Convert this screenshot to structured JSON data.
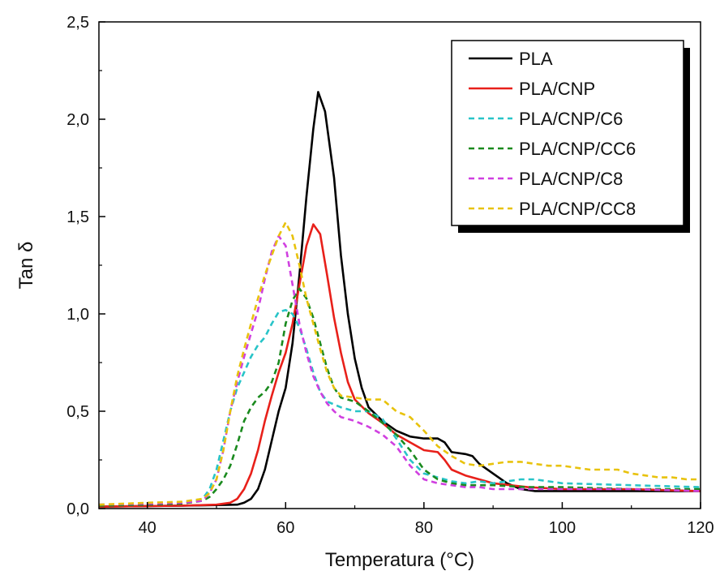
{
  "chart_data": {
    "type": "line",
    "xlabel": "Temperatura (°C)",
    "ylabel": "Tan δ",
    "xlim": [
      33,
      120
    ],
    "ylim": [
      0,
      2.5
    ],
    "xticks": [
      40,
      60,
      80,
      100,
      120
    ],
    "yticks": [
      0,
      0.5,
      1.0,
      1.5,
      2.0,
      2.5
    ],
    "xtick_labels": [
      "40",
      "60",
      "80",
      "100",
      "120"
    ],
    "ytick_labels": [
      "0,0",
      "0,5",
      "1,0",
      "1,5",
      "2,0",
      "2,5"
    ],
    "grid": false,
    "legend_position": "top-right",
    "series": [
      {
        "name": "PLA",
        "color": "#000000",
        "dash": "solid",
        "points": [
          [
            33,
            0.01
          ],
          [
            45,
            0.015
          ],
          [
            50,
            0.018
          ],
          [
            53,
            0.02
          ],
          [
            54,
            0.03
          ],
          [
            55,
            0.05
          ],
          [
            56,
            0.1
          ],
          [
            57,
            0.2
          ],
          [
            58,
            0.35
          ],
          [
            59,
            0.5
          ],
          [
            60,
            0.62
          ],
          [
            61,
            0.85
          ],
          [
            62,
            1.2
          ],
          [
            63,
            1.6
          ],
          [
            64,
            1.95
          ],
          [
            64.7,
            2.14
          ],
          [
            65.7,
            2.04
          ],
          [
            67,
            1.7
          ],
          [
            68,
            1.3
          ],
          [
            69,
            1.0
          ],
          [
            70,
            0.77
          ],
          [
            71,
            0.62
          ],
          [
            72,
            0.52
          ],
          [
            74,
            0.45
          ],
          [
            76,
            0.4
          ],
          [
            78,
            0.37
          ],
          [
            80,
            0.36
          ],
          [
            82,
            0.36
          ],
          [
            83,
            0.34
          ],
          [
            84,
            0.29
          ],
          [
            86,
            0.28
          ],
          [
            87,
            0.27
          ],
          [
            88,
            0.23
          ],
          [
            90,
            0.18
          ],
          [
            92,
            0.13
          ],
          [
            94,
            0.1
          ],
          [
            96,
            0.09
          ],
          [
            100,
            0.09
          ],
          [
            105,
            0.09
          ],
          [
            110,
            0.09
          ],
          [
            115,
            0.09
          ],
          [
            120,
            0.09
          ]
        ]
      },
      {
        "name": "PLA/CNP",
        "color": "#e8201a",
        "dash": "solid",
        "points": [
          [
            33,
            0.01
          ],
          [
            45,
            0.015
          ],
          [
            50,
            0.02
          ],
          [
            52,
            0.03
          ],
          [
            53,
            0.05
          ],
          [
            54,
            0.1
          ],
          [
            55,
            0.18
          ],
          [
            56,
            0.3
          ],
          [
            57,
            0.45
          ],
          [
            58,
            0.58
          ],
          [
            59,
            0.7
          ],
          [
            60,
            0.8
          ],
          [
            61,
            0.95
          ],
          [
            62,
            1.15
          ],
          [
            63,
            1.35
          ],
          [
            64,
            1.46
          ],
          [
            65,
            1.41
          ],
          [
            66,
            1.2
          ],
          [
            67,
            0.98
          ],
          [
            68,
            0.8
          ],
          [
            69,
            0.65
          ],
          [
            70,
            0.56
          ],
          [
            72,
            0.49
          ],
          [
            74,
            0.44
          ],
          [
            76,
            0.38
          ],
          [
            78,
            0.34
          ],
          [
            80,
            0.3
          ],
          [
            82,
            0.29
          ],
          [
            83,
            0.25
          ],
          [
            84,
            0.2
          ],
          [
            86,
            0.17
          ],
          [
            88,
            0.15
          ],
          [
            90,
            0.13
          ],
          [
            95,
            0.11
          ],
          [
            100,
            0.1
          ],
          [
            105,
            0.1
          ],
          [
            110,
            0.1
          ],
          [
            120,
            0.09
          ]
        ]
      },
      {
        "name": "PLA/CNP/C6",
        "color": "#28c4c8",
        "dash": "dashed",
        "points": [
          [
            33,
            0.02
          ],
          [
            40,
            0.025
          ],
          [
            45,
            0.03
          ],
          [
            48,
            0.05
          ],
          [
            49,
            0.1
          ],
          [
            50,
            0.2
          ],
          [
            51,
            0.35
          ],
          [
            52,
            0.5
          ],
          [
            53,
            0.62
          ],
          [
            54,
            0.7
          ],
          [
            55,
            0.78
          ],
          [
            56,
            0.84
          ],
          [
            57,
            0.88
          ],
          [
            58,
            0.95
          ],
          [
            59,
            1.01
          ],
          [
            60,
            1.02
          ],
          [
            61,
            1.0
          ],
          [
            62,
            0.93
          ],
          [
            63,
            0.82
          ],
          [
            64,
            0.7
          ],
          [
            65,
            0.6
          ],
          [
            66,
            0.55
          ],
          [
            68,
            0.52
          ],
          [
            70,
            0.5
          ],
          [
            72,
            0.5
          ],
          [
            74,
            0.46
          ],
          [
            76,
            0.36
          ],
          [
            78,
            0.25
          ],
          [
            80,
            0.18
          ],
          [
            82,
            0.16
          ],
          [
            84,
            0.14
          ],
          [
            86,
            0.13
          ],
          [
            88,
            0.14
          ],
          [
            90,
            0.13
          ],
          [
            92,
            0.14
          ],
          [
            94,
            0.15
          ],
          [
            96,
            0.15
          ],
          [
            98,
            0.14
          ],
          [
            100,
            0.13
          ],
          [
            110,
            0.12
          ],
          [
            120,
            0.11
          ]
        ]
      },
      {
        "name": "PLA/CNP/CC6",
        "color": "#1a8a1e",
        "dash": "dashed",
        "points": [
          [
            33,
            0.015
          ],
          [
            40,
            0.02
          ],
          [
            45,
            0.025
          ],
          [
            48,
            0.04
          ],
          [
            49,
            0.06
          ],
          [
            50,
            0.1
          ],
          [
            51,
            0.15
          ],
          [
            52,
            0.22
          ],
          [
            53,
            0.33
          ],
          [
            54,
            0.45
          ],
          [
            55,
            0.52
          ],
          [
            56,
            0.57
          ],
          [
            57,
            0.6
          ],
          [
            58,
            0.65
          ],
          [
            59,
            0.75
          ],
          [
            60,
            0.95
          ],
          [
            61,
            1.07
          ],
          [
            62,
            1.13
          ],
          [
            63,
            1.08
          ],
          [
            64,
            0.98
          ],
          [
            65,
            0.85
          ],
          [
            66,
            0.72
          ],
          [
            67,
            0.62
          ],
          [
            68,
            0.57
          ],
          [
            70,
            0.55
          ],
          [
            72,
            0.5
          ],
          [
            74,
            0.44
          ],
          [
            76,
            0.38
          ],
          [
            78,
            0.3
          ],
          [
            80,
            0.2
          ],
          [
            82,
            0.15
          ],
          [
            84,
            0.13
          ],
          [
            86,
            0.12
          ],
          [
            88,
            0.12
          ],
          [
            90,
            0.12
          ],
          [
            95,
            0.11
          ],
          [
            100,
            0.11
          ],
          [
            110,
            0.1
          ],
          [
            120,
            0.1
          ]
        ]
      },
      {
        "name": "PLA/CNP/C8",
        "color": "#d040e0",
        "dash": "dashed",
        "points": [
          [
            33,
            0.02
          ],
          [
            40,
            0.025
          ],
          [
            45,
            0.03
          ],
          [
            48,
            0.04
          ],
          [
            49,
            0.08
          ],
          [
            50,
            0.15
          ],
          [
            51,
            0.3
          ],
          [
            52,
            0.5
          ],
          [
            53,
            0.65
          ],
          [
            54,
            0.78
          ],
          [
            55,
            0.9
          ],
          [
            56,
            1.02
          ],
          [
            57,
            1.18
          ],
          [
            58,
            1.32
          ],
          [
            59,
            1.4
          ],
          [
            60,
            1.35
          ],
          [
            61,
            1.15
          ],
          [
            62,
            0.95
          ],
          [
            63,
            0.8
          ],
          [
            64,
            0.68
          ],
          [
            65,
            0.6
          ],
          [
            66,
            0.54
          ],
          [
            67,
            0.5
          ],
          [
            68,
            0.47
          ],
          [
            70,
            0.45
          ],
          [
            72,
            0.42
          ],
          [
            74,
            0.38
          ],
          [
            76,
            0.32
          ],
          [
            78,
            0.22
          ],
          [
            80,
            0.15
          ],
          [
            82,
            0.13
          ],
          [
            84,
            0.12
          ],
          [
            86,
            0.11
          ],
          [
            88,
            0.11
          ],
          [
            90,
            0.1
          ],
          [
            95,
            0.1
          ],
          [
            100,
            0.1
          ],
          [
            110,
            0.1
          ],
          [
            120,
            0.09
          ]
        ]
      },
      {
        "name": "PLA/CNP/CC8",
        "color": "#e8c20c",
        "dash": "dashed",
        "points": [
          [
            33,
            0.02
          ],
          [
            40,
            0.03
          ],
          [
            45,
            0.035
          ],
          [
            48,
            0.05
          ],
          [
            49,
            0.08
          ],
          [
            50,
            0.15
          ],
          [
            51,
            0.3
          ],
          [
            52,
            0.5
          ],
          [
            53,
            0.68
          ],
          [
            54,
            0.82
          ],
          [
            55,
            0.95
          ],
          [
            56,
            1.08
          ],
          [
            57,
            1.2
          ],
          [
            58,
            1.3
          ],
          [
            59,
            1.4
          ],
          [
            60,
            1.47
          ],
          [
            61,
            1.4
          ],
          [
            62,
            1.25
          ],
          [
            63,
            1.08
          ],
          [
            64,
            0.95
          ],
          [
            65,
            0.82
          ],
          [
            66,
            0.7
          ],
          [
            67,
            0.62
          ],
          [
            68,
            0.58
          ],
          [
            70,
            0.57
          ],
          [
            72,
            0.56
          ],
          [
            74,
            0.56
          ],
          [
            76,
            0.5
          ],
          [
            78,
            0.47
          ],
          [
            80,
            0.4
          ],
          [
            82,
            0.32
          ],
          [
            84,
            0.27
          ],
          [
            86,
            0.23
          ],
          [
            88,
            0.22
          ],
          [
            90,
            0.23
          ],
          [
            92,
            0.24
          ],
          [
            94,
            0.24
          ],
          [
            96,
            0.23
          ],
          [
            98,
            0.22
          ],
          [
            100,
            0.22
          ],
          [
            102,
            0.21
          ],
          [
            104,
            0.2
          ],
          [
            106,
            0.2
          ],
          [
            108,
            0.2
          ],
          [
            110,
            0.18
          ],
          [
            112,
            0.17
          ],
          [
            114,
            0.16
          ],
          [
            116,
            0.16
          ],
          [
            118,
            0.15
          ],
          [
            120,
            0.15
          ]
        ]
      }
    ]
  }
}
